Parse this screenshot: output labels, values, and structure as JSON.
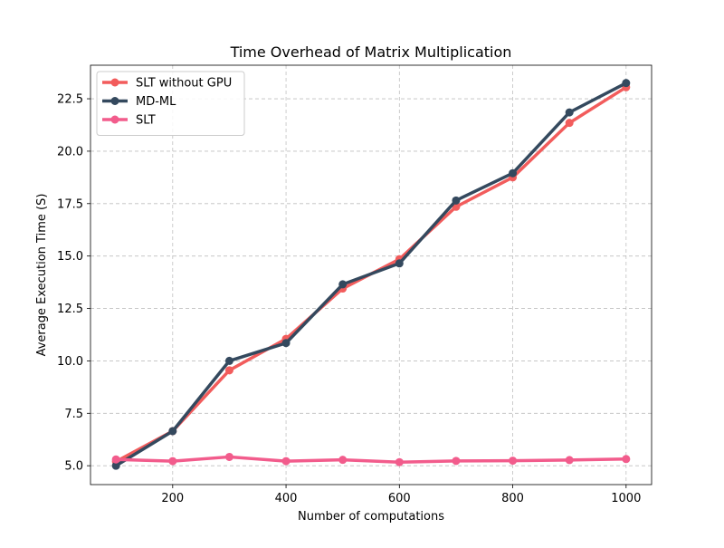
{
  "chart_data": {
    "type": "line",
    "title": "Time Overhead of Matrix Multiplication",
    "xlabel": "Number of computations",
    "ylabel": "Average Execution Time (S)",
    "xlim": [
      55,
      1045
    ],
    "ylim": [
      4.1,
      24.1
    ],
    "xticks": [
      200,
      400,
      600,
      800,
      1000
    ],
    "yticks": [
      5.0,
      7.5,
      10.0,
      12.5,
      15.0,
      17.5,
      20.0,
      22.5
    ],
    "ytick_labels": [
      "5.0",
      "7.5",
      "10.0",
      "12.5",
      "15.0",
      "17.5",
      "20.0",
      "22.5"
    ],
    "grid": true,
    "legend_position": "upper-left",
    "x": [
      100,
      200,
      300,
      400,
      500,
      600,
      700,
      800,
      900,
      1000
    ],
    "series": [
      {
        "name": "SLT without GPU",
        "color": "#f25c5c",
        "values": [
          5.2,
          6.65,
          9.55,
          11.05,
          13.45,
          14.85,
          17.35,
          18.75,
          21.35,
          23.05
        ]
      },
      {
        "name": "MD-ML",
        "color": "#34495e",
        "values": [
          5.0,
          6.65,
          10.0,
          10.85,
          13.65,
          14.65,
          17.65,
          18.95,
          21.85,
          23.25
        ]
      },
      {
        "name": "SLT",
        "color": "#f25c8c",
        "values": [
          5.3,
          5.22,
          5.42,
          5.22,
          5.28,
          5.17,
          5.23,
          5.24,
          5.27,
          5.32
        ]
      }
    ]
  }
}
